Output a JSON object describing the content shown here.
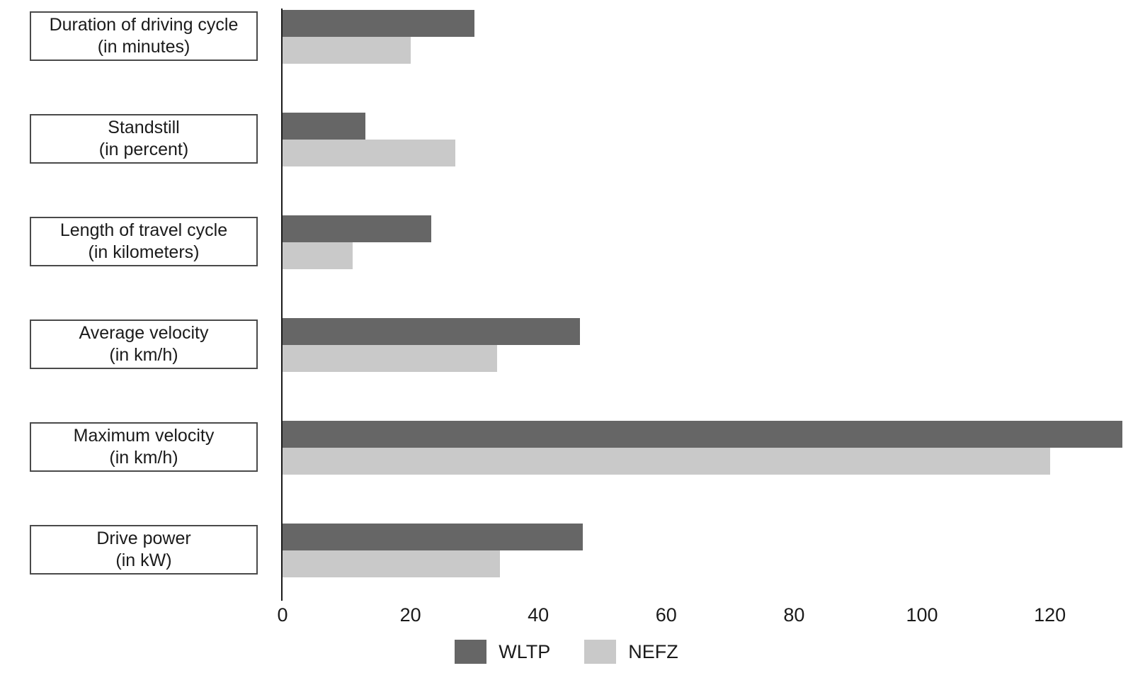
{
  "page": {
    "background": "#ffffff",
    "text_color": "#1b1b1b"
  },
  "chart_data": {
    "type": "bar",
    "orientation": "horizontal",
    "title": "",
    "xlabel": "",
    "ylabel": "",
    "categories": [
      {
        "label": "Duration of driving cycle",
        "unit": "(in minutes)"
      },
      {
        "label": "Standstill",
        "unit": "(in percent)"
      },
      {
        "label": "Length of travel cycle",
        "unit": "(in kilometers)"
      },
      {
        "label": "Average velocity",
        "unit": "(in km/h)"
      },
      {
        "label": "Maximum velocity",
        "unit": "(in km/h)"
      },
      {
        "label": "Drive power",
        "unit": "(in kW)"
      }
    ],
    "series": [
      {
        "name": "WLTP",
        "color": "#666666",
        "values": [
          30,
          13,
          23.25,
          46.5,
          131.3,
          47
        ]
      },
      {
        "name": "NEFZ",
        "color": "#c9c9c9",
        "values": [
          20,
          27,
          11,
          33.6,
          120,
          34
        ]
      }
    ],
    "x_ticks": [
      0,
      20,
      40,
      60,
      80,
      100,
      120
    ],
    "xlim": [
      0,
      133
    ],
    "grid": false,
    "legend_position": "bottom"
  }
}
